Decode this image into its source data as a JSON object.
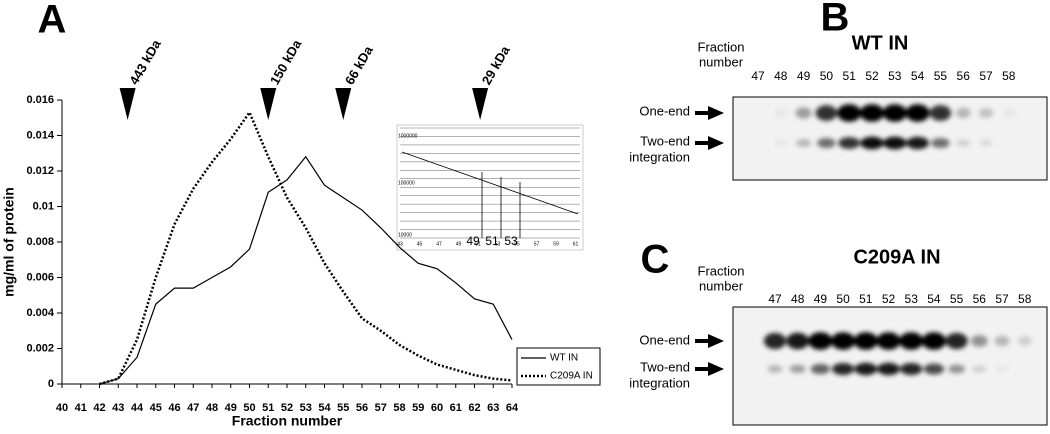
{
  "chart_data": {
    "type": "line",
    "panel_label": "A",
    "xlabel": "Fraction number",
    "ylabel": "mg/ml of protein",
    "x": [
      42,
      43,
      44,
      45,
      46,
      47,
      48,
      49,
      50,
      51,
      52,
      53,
      54,
      55,
      56,
      57,
      58,
      59,
      60,
      61,
      62,
      63,
      64
    ],
    "xlim": [
      40,
      64
    ],
    "xticks": [
      40,
      41,
      42,
      43,
      44,
      45,
      46,
      47,
      48,
      49,
      50,
      51,
      52,
      53,
      54,
      55,
      56,
      57,
      58,
      59,
      60,
      61,
      62,
      63,
      64
    ],
    "ylim": [
      0,
      0.016
    ],
    "yticks": [
      0,
      0.002,
      0.004,
      0.006,
      0.008,
      0.01,
      0.012,
      0.014,
      0.016
    ],
    "legend": "lower right",
    "series": [
      {
        "name": "WT IN",
        "color": "#000000",
        "style": "solid",
        "values": [
          0,
          0.0003,
          0.0015,
          0.0045,
          0.0054,
          0.0054,
          0.006,
          0.0066,
          0.0076,
          0.0108,
          0.0115,
          0.0128,
          0.0112,
          0.0105,
          0.0098,
          0.0088,
          0.0077,
          0.0068,
          0.0065,
          0.0057,
          0.0048,
          0.0045,
          0.0025
        ]
      },
      {
        "name": "C209A IN",
        "color": "#000000",
        "style": "dotted",
        "values": [
          0,
          0.0003,
          0.0025,
          0.006,
          0.009,
          0.011,
          0.0125,
          0.0138,
          0.0153,
          0.0128,
          0.0105,
          0.0088,
          0.0068,
          0.0052,
          0.0037,
          0.003,
          0.0022,
          0.0016,
          0.0011,
          0.0008,
          0.0005,
          0.0003,
          0.0002
        ]
      }
    ],
    "markers": [
      {
        "label": "443 kDa",
        "x": 43.5
      },
      {
        "label": "150 kDa",
        "x": 51
      },
      {
        "label": "66 kDa",
        "x": 55
      },
      {
        "label": "29 kDa",
        "x": 62.3
      }
    ],
    "inset": {
      "yticks": [
        "1000000",
        "100000",
        "10000"
      ],
      "xticks": [
        "43",
        "45",
        "47",
        "49",
        "51",
        "53",
        "55",
        "57",
        "59",
        "61"
      ],
      "highlight": [
        "49",
        "51",
        "53"
      ]
    }
  },
  "gels": [
    {
      "panel_label": "B",
      "title": "WT IN",
      "fraction_label": [
        "Fraction",
        "number"
      ],
      "fractions": [
        "47",
        "48",
        "49",
        "50",
        "51",
        "52",
        "53",
        "54",
        "55",
        "56",
        "57",
        "58"
      ],
      "bands": [
        [
          "One-end"
        ],
        [
          "Two-end",
          "integration"
        ]
      ]
    },
    {
      "panel_label": "C",
      "title": "C209A IN",
      "fraction_label": [
        "Fraction",
        "number"
      ],
      "fractions": [
        "47",
        "48",
        "49",
        "50",
        "51",
        "52",
        "53",
        "54",
        "55",
        "56",
        "57",
        "58"
      ],
      "bands": [
        [
          "One-end"
        ],
        [
          "Two-end",
          "integration"
        ]
      ]
    }
  ]
}
